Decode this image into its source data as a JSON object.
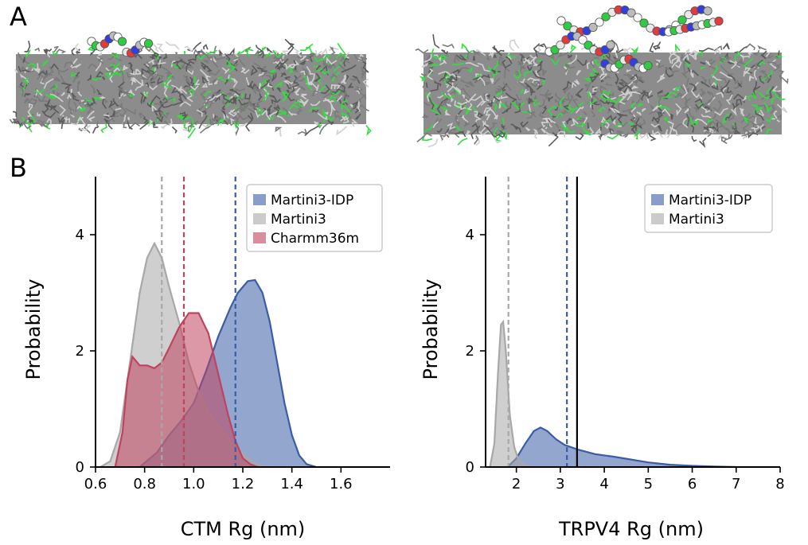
{
  "panels": {
    "a": "A",
    "b": "B"
  },
  "colors": {
    "martini3_idp": "#3b5ca6",
    "martini3": "#a8a8a8",
    "charmm36m": "#c0435e",
    "lipid_gray": "#7a7a7a",
    "lipid_green": "#2ee03a",
    "reference_line": "#000000"
  },
  "chart_data": [
    {
      "type": "area",
      "title": "",
      "xlabel": "CTM Rg (nm)",
      "ylabel": "Probability",
      "xlim": [
        0.6,
        1.8
      ],
      "ylim": [
        0,
        5
      ],
      "xticks": [
        "0.6",
        "0.8",
        "1.0",
        "1.2",
        "1.4",
        "1.6"
      ],
      "yticks": [
        "0",
        "2",
        "4"
      ],
      "legend_position": "top-right",
      "series": [
        {
          "name": "Martini3-IDP",
          "color": "#3b5ca6",
          "x": [
            0.78,
            0.85,
            0.9,
            0.95,
            1.0,
            1.05,
            1.1,
            1.15,
            1.18,
            1.22,
            1.25,
            1.28,
            1.31,
            1.34,
            1.37,
            1.4,
            1.43,
            1.46,
            1.5
          ],
          "y": [
            0.0,
            0.25,
            0.55,
            0.8,
            1.1,
            1.65,
            2.25,
            2.75,
            3.0,
            3.2,
            3.22,
            3.0,
            2.5,
            1.8,
            1.1,
            0.55,
            0.2,
            0.05,
            0.0
          ],
          "mean": 1.17
        },
        {
          "name": "Martini3",
          "color": "#a8a8a8",
          "x": [
            0.62,
            0.66,
            0.7,
            0.74,
            0.78,
            0.81,
            0.84,
            0.87,
            0.9,
            0.94,
            0.98,
            1.02,
            1.06,
            1.1,
            1.14,
            1.18,
            1.22,
            1.26,
            1.3
          ],
          "y": [
            0.0,
            0.1,
            0.6,
            1.8,
            3.0,
            3.6,
            3.85,
            3.6,
            3.1,
            2.5,
            1.8,
            1.3,
            0.95,
            0.7,
            0.5,
            0.3,
            0.15,
            0.05,
            0.0
          ],
          "mean": 0.87
        },
        {
          "name": "Charmm36m",
          "color": "#c0435e",
          "x": [
            0.68,
            0.71,
            0.73,
            0.75,
            0.78,
            0.81,
            0.84,
            0.87,
            0.9,
            0.94,
            0.98,
            1.02,
            1.06,
            1.1,
            1.14,
            1.17,
            1.2,
            1.23,
            1.26
          ],
          "y": [
            0.0,
            0.6,
            1.5,
            1.9,
            1.75,
            1.75,
            1.7,
            1.8,
            2.05,
            2.4,
            2.65,
            2.65,
            2.3,
            1.6,
            0.9,
            0.45,
            0.15,
            0.05,
            0.0
          ],
          "mean": 0.96
        }
      ]
    },
    {
      "type": "area",
      "title": "",
      "xlabel": "TRPV4 Rg (nm)",
      "ylabel": "Probability",
      "xlim": [
        1.3,
        8.0
      ],
      "ylim": [
        0,
        5
      ],
      "xticks": [
        "2",
        "3",
        "4",
        "5",
        "6",
        "7",
        "8"
      ],
      "yticks": [
        "0",
        "2",
        "4"
      ],
      "legend_position": "top-right",
      "reference_x": 3.38,
      "series": [
        {
          "name": "Martini3-IDP",
          "color": "#3b5ca6",
          "x": [
            1.8,
            2.0,
            2.2,
            2.4,
            2.55,
            2.7,
            2.9,
            3.1,
            3.4,
            3.8,
            4.2,
            4.6,
            5.0,
            5.5,
            6.0,
            6.5,
            7.0
          ],
          "y": [
            0.0,
            0.15,
            0.4,
            0.62,
            0.68,
            0.62,
            0.48,
            0.38,
            0.3,
            0.22,
            0.18,
            0.13,
            0.08,
            0.04,
            0.02,
            0.01,
            0.0
          ],
          "mean": 3.15
        },
        {
          "name": "Martini3",
          "color": "#a8a8a8",
          "x": [
            1.4,
            1.5,
            1.58,
            1.65,
            1.7,
            1.76,
            1.85,
            1.95,
            2.05,
            2.2,
            2.4
          ],
          "y": [
            0.0,
            0.4,
            1.6,
            2.45,
            2.5,
            2.0,
            0.9,
            0.35,
            0.12,
            0.03,
            0.0
          ],
          "mean": 1.82
        }
      ]
    }
  ]
}
